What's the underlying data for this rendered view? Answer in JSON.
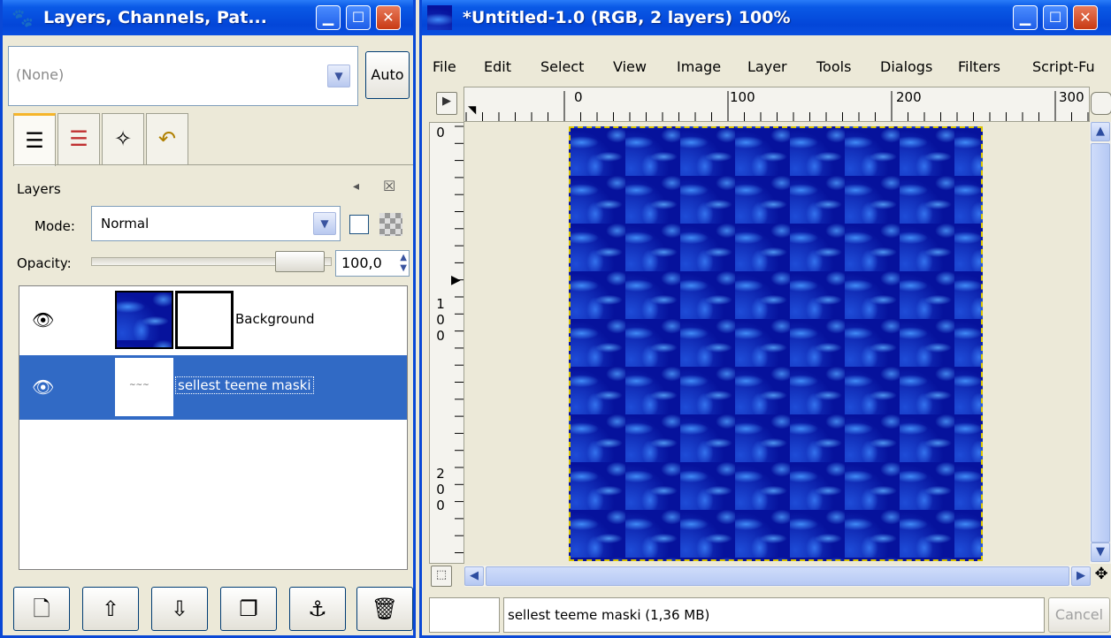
{
  "layers_window": {
    "title": "Layers, Channels, Pat...",
    "image_combo": {
      "value": "(None)"
    },
    "auto_label": "Auto",
    "tabs": [
      {
        "name": "tab-layers",
        "icon": "layers-icon",
        "active": true
      },
      {
        "name": "tab-channels",
        "icon": "channels-icon",
        "active": false
      },
      {
        "name": "tab-paths",
        "icon": "paths-icon",
        "active": false
      },
      {
        "name": "tab-undo-history",
        "icon": "undo-history-icon",
        "active": false
      }
    ],
    "panel": {
      "title": "Layers",
      "mode_label": "Mode:",
      "mode_value": "Normal",
      "opacity_label": "Opacity:",
      "opacity_value": "100,0",
      "opacity_fraction": 1.0
    },
    "layers": [
      {
        "name": "Background",
        "visible": true,
        "selected": false,
        "has_mask": true
      },
      {
        "name": "sellest teeme maski",
        "visible": true,
        "selected": true,
        "has_mask": false
      }
    ],
    "bottom_buttons": [
      {
        "name": "new-layer-button",
        "icon": "new-page-icon",
        "glyph": "🗋"
      },
      {
        "name": "raise-layer-button",
        "icon": "arrow-up-icon",
        "glyph": "⇧"
      },
      {
        "name": "lower-layer-button",
        "icon": "arrow-down-icon",
        "glyph": "⇩"
      },
      {
        "name": "duplicate-layer-button",
        "icon": "duplicate-icon",
        "glyph": "❐"
      },
      {
        "name": "anchor-layer-button",
        "icon": "anchor-icon",
        "glyph": "⚓"
      },
      {
        "name": "delete-layer-button",
        "icon": "trash-icon",
        "glyph": "🗑"
      }
    ]
  },
  "image_window": {
    "title": "*Untitled-1.0 (RGB, 2 layers) 100%",
    "menu": [
      "File",
      "Edit",
      "Select",
      "View",
      "Image",
      "Layer",
      "Tools",
      "Dialogs",
      "Filters",
      "Script-Fu"
    ],
    "ruler_h_labels": [
      "0",
      "100",
      "200",
      "300"
    ],
    "ruler_v_labels": [
      "0",
      "100",
      "200"
    ],
    "status_text": "sellest teeme maski (1,36 MB)",
    "cancel_label": "Cancel"
  },
  "colors": {
    "titlebar": "#0a5ae6",
    "selection": "#316ac5",
    "pattern_dark": "#06129c",
    "pattern_light": "#4696ff"
  }
}
